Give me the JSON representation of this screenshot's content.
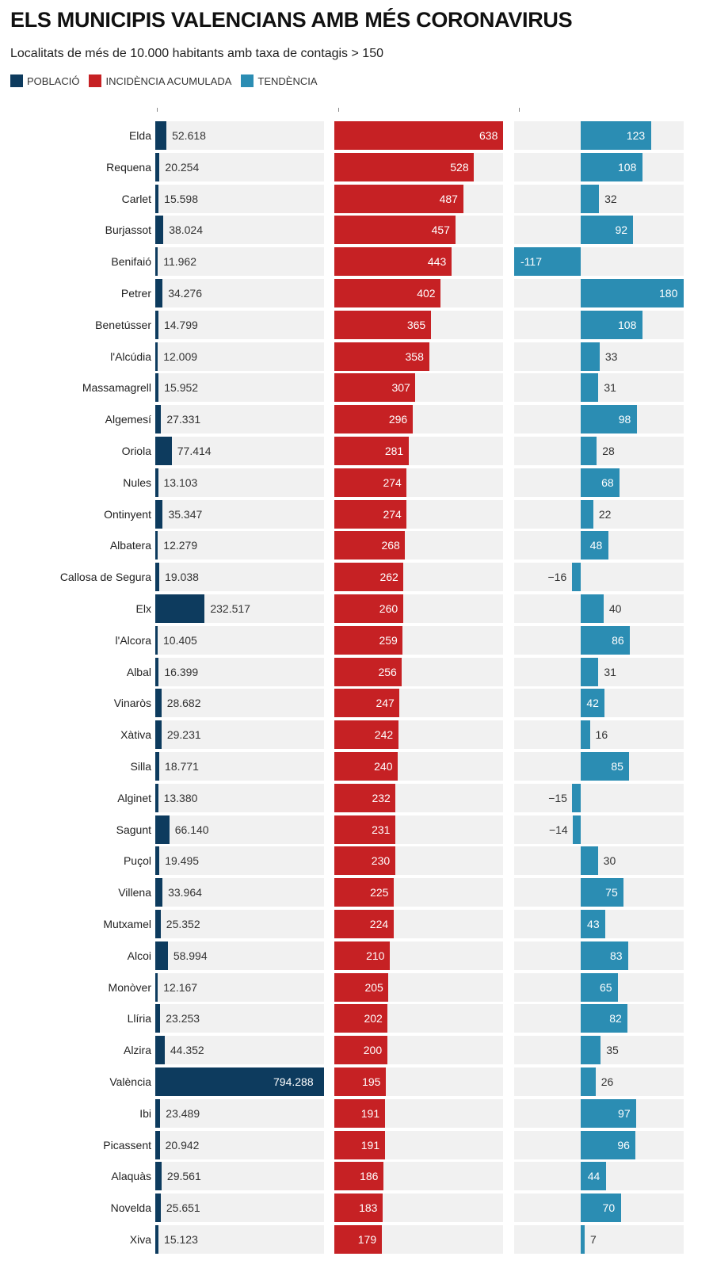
{
  "header": {
    "title": "ELS MUNICIPIS VALENCIANS AMB MÉS CORONAVIRUS",
    "subtitle": "Localitats de més de 10.000 habitants amb taxa de contagis > 150"
  },
  "legend": [
    {
      "label": "POBLACIÓ",
      "color": "#0d3b5e"
    },
    {
      "label": "INCIDÈNCIA ACUMULADA",
      "color": "#c62124"
    },
    {
      "label": "TENDÈNCIA",
      "color": "#2b8db3"
    }
  ],
  "chart_data": {
    "type": "bar",
    "title": "ELS MUNICIPIS VALENCIANS AMB MÉS CORONAVIRUS",
    "subtitle": "Localitats de més de 10.000 habitants amb taxa de contagis > 150",
    "categories": [
      "Elda",
      "Requena",
      "Carlet",
      "Burjassot",
      "Benifaió",
      "Petrer",
      "Benetússer",
      "l'Alcúdia",
      "Massamagrell",
      "Algemesí",
      "Oriola",
      "Nules",
      "Ontinyent",
      "Albatera",
      "Callosa de Segura",
      "Elx",
      "l'Alcora",
      "Albal",
      "Vinaròs",
      "Xàtiva",
      "Silla",
      "Alginet",
      "Sagunt",
      "Puçol",
      "Villena",
      "Mutxamel",
      "Alcoi",
      "Monòver",
      "Llíria",
      "Alzira",
      "València",
      "Ibi",
      "Picassent",
      "Alaquàs",
      "Novelda",
      "Xiva"
    ],
    "series": [
      {
        "name": "POBLACIÓ",
        "color": "#0d3b5e",
        "values": [
          52618,
          20254,
          15598,
          38024,
          11962,
          34276,
          14799,
          12009,
          15952,
          27331,
          77414,
          13103,
          35347,
          12279,
          19038,
          232517,
          10405,
          16399,
          28682,
          29231,
          18771,
          13380,
          66140,
          19495,
          33964,
          25352,
          58994,
          12167,
          23253,
          44352,
          794288,
          23489,
          20942,
          29561,
          25651,
          15123
        ],
        "labels": [
          "52.618",
          "20.254",
          "15.598",
          "38.024",
          "11.962",
          "34.276",
          "14.799",
          "12.009",
          "15.952",
          "27.331",
          "77.414",
          "13.103",
          "35.347",
          "12.279",
          "19.038",
          "232.517",
          "10.405",
          "16.399",
          "28.682",
          "29.231",
          "18.771",
          "13.380",
          "66.140",
          "19.495",
          "33.964",
          "25.352",
          "58.994",
          "12.167",
          "23.253",
          "44.352",
          "794.288",
          "23.489",
          "20.942",
          "29.561",
          "25.651",
          "15.123"
        ]
      },
      {
        "name": "INCIDÈNCIA ACUMULADA",
        "color": "#c62124",
        "values": [
          638,
          528,
          487,
          457,
          443,
          402,
          365,
          358,
          307,
          296,
          281,
          274,
          274,
          268,
          262,
          260,
          259,
          256,
          247,
          242,
          240,
          232,
          231,
          230,
          225,
          224,
          210,
          205,
          202,
          200,
          195,
          191,
          191,
          186,
          183,
          179
        ]
      },
      {
        "name": "TENDÈNCIA",
        "color": "#2b8db3",
        "values": [
          123,
          108,
          32,
          92,
          -117,
          180,
          108,
          33,
          31,
          98,
          28,
          68,
          22,
          48,
          -16,
          40,
          86,
          31,
          42,
          16,
          85,
          -15,
          -14,
          30,
          75,
          43,
          83,
          65,
          82,
          35,
          26,
          97,
          96,
          44,
          70,
          7
        ],
        "labels": [
          "123",
          "108",
          "32",
          "92",
          "-117",
          "180",
          "108",
          "33",
          "31",
          "98",
          "28",
          "68",
          "22",
          "48",
          "−16",
          "40",
          "86",
          "31",
          "42",
          "16",
          "85",
          "−15",
          "−14",
          "30",
          "75",
          "43",
          "83",
          "65",
          "82",
          "35",
          "26",
          "97",
          "96",
          "44",
          "70",
          "7"
        ]
      }
    ],
    "xlim": {
      "POBLACIÓ": [
        0,
        794288
      ],
      "INCIDÈNCIA ACUMULADA": [
        0,
        638
      ],
      "TENDÈNCIA": [
        -117,
        180
      ]
    },
    "grid": false,
    "legend_position": "top-left"
  }
}
